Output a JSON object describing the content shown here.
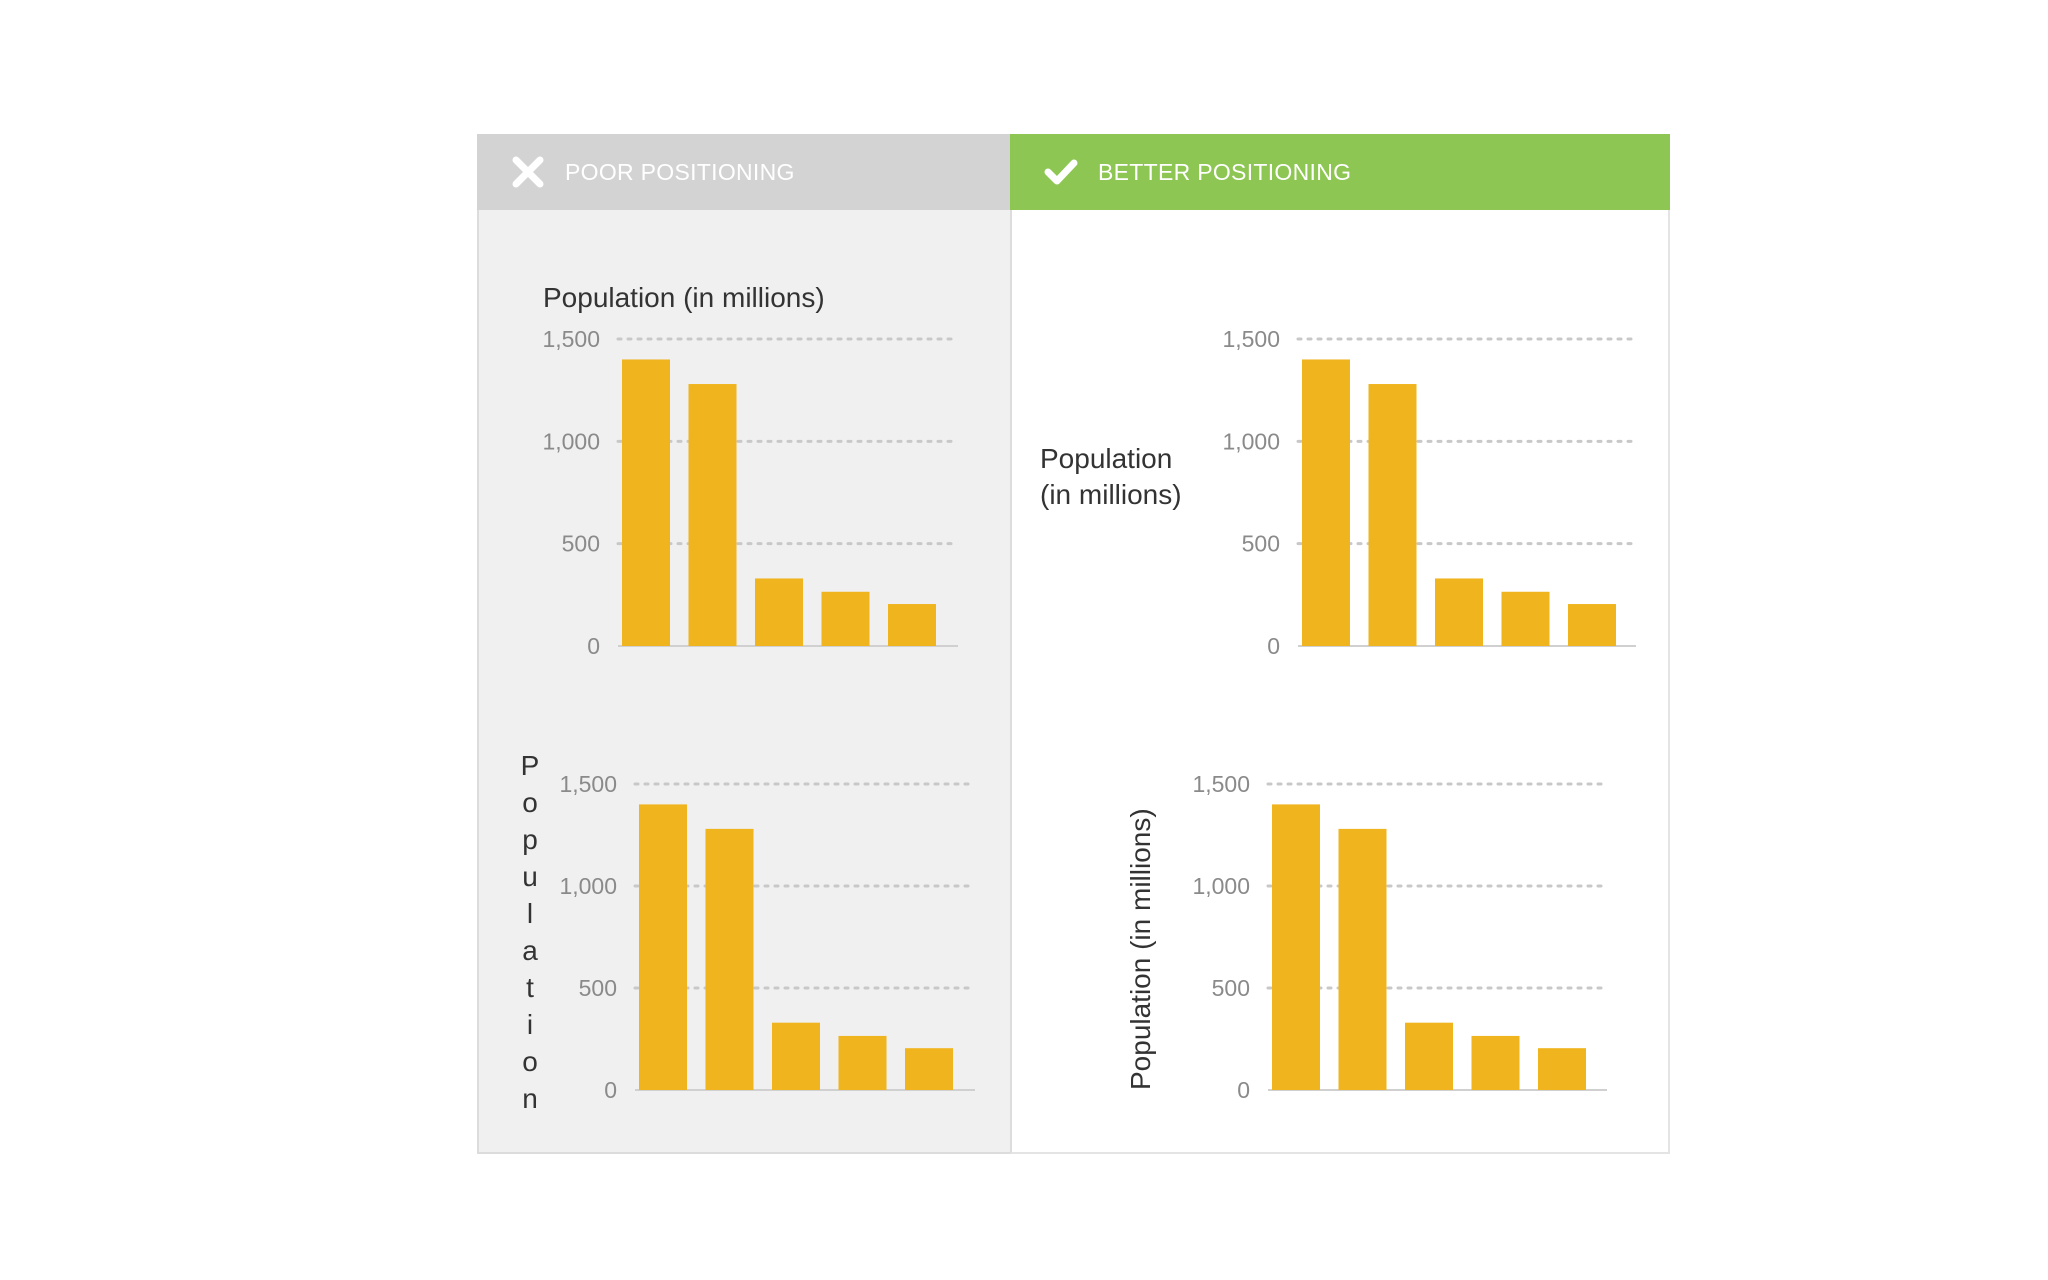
{
  "panels": {
    "poor": {
      "title": "POOR POSITIONING",
      "icon": "x-icon",
      "header_color": "#d3d3d3"
    },
    "better": {
      "title": "BETTER POSITIONING",
      "icon": "check-icon",
      "header_color": "#8dc652"
    }
  },
  "colors": {
    "bar": "#f0b41e",
    "grid": "#c8c8c8",
    "tick": "#8a8a8a",
    "title": "#333333"
  },
  "chart_data": [
    {
      "id": "poor-top",
      "type": "bar",
      "title": "Population (in millions)",
      "categories": [
        "",
        "",
        "",
        "",
        ""
      ],
      "values": [
        1400,
        1280,
        330,
        265,
        205
      ],
      "ylabel": "",
      "ylim": [
        0,
        1500
      ],
      "yticks": [
        "0",
        "500",
        "1,000",
        "1,500"
      ],
      "grid": true
    },
    {
      "id": "better-top",
      "type": "bar",
      "ylabel_lines": [
        "Population",
        "(in millions)"
      ],
      "categories": [
        "",
        "",
        "",
        "",
        ""
      ],
      "values": [
        1400,
        1280,
        330,
        265,
        205
      ],
      "ylim": [
        0,
        1500
      ],
      "yticks": [
        "0",
        "500",
        "1,000",
        "1,500"
      ],
      "grid": true
    },
    {
      "id": "poor-bottom",
      "type": "bar",
      "ylabel_stacked": "Population",
      "categories": [
        "",
        "",
        "",
        "",
        ""
      ],
      "values": [
        1400,
        1280,
        330,
        265,
        205
      ],
      "ylim": [
        0,
        1500
      ],
      "yticks": [
        "0",
        "500",
        "1,000",
        "1,500"
      ],
      "grid": true
    },
    {
      "id": "better-bottom",
      "type": "bar",
      "ylabel": "Population (in millions)",
      "categories": [
        "",
        "",
        "",
        "",
        ""
      ],
      "values": [
        1400,
        1280,
        330,
        265,
        205
      ],
      "ylim": [
        0,
        1500
      ],
      "yticks": [
        "0",
        "500",
        "1,000",
        "1,500"
      ],
      "grid": true
    }
  ]
}
